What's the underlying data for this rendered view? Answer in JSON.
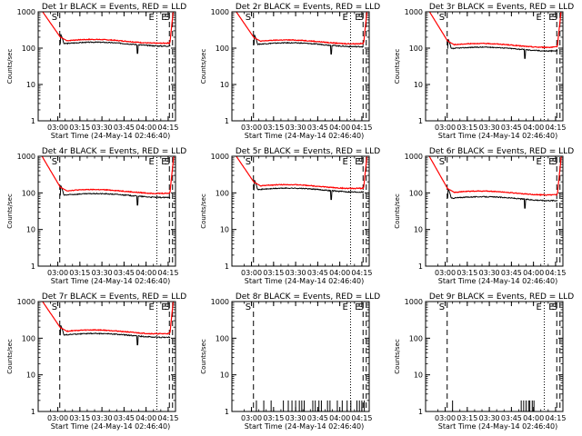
{
  "chart_data": {
    "common": {
      "type": "line",
      "ylabel": "Counts/sec",
      "xlabel": "Start Time (24-May-14 02:46:40)",
      "yscale": "log",
      "ylim": [
        1,
        1000
      ],
      "yticks": [
        1,
        10,
        100,
        1000
      ],
      "xlim_sec": [
        0,
        5600
      ],
      "xticks": [
        {
          "t": 800,
          "label": "03:00"
        },
        {
          "t": 1700,
          "label": "03:15"
        },
        {
          "t": 2600,
          "label": "03:30"
        },
        {
          "t": 3500,
          "label": "03:45"
        },
        {
          "t": 4400,
          "label": "04:00"
        },
        {
          "t": 5300,
          "label": "04:15"
        }
      ],
      "markers": [
        {
          "label": "S",
          "t": 880,
          "style": "dashed"
        },
        {
          "label": "E",
          "t": 4840,
          "style": "dotted"
        },
        {
          "label": "E",
          "t": 5350,
          "style": "dashed"
        },
        {
          "label": "S",
          "t": 5480,
          "style": "dashed"
        }
      ],
      "colors": {
        "events": "#000000",
        "lld": "#ff0000"
      }
    },
    "panels": [
      {
        "title": "Det 1r BLACK = Events, RED = LLD",
        "events_level": 130,
        "lld_level": 155,
        "mode": "normal"
      },
      {
        "title": "Det 2r BLACK = Events, RED = LLD",
        "events_level": 125,
        "lld_level": 150,
        "mode": "normal"
      },
      {
        "title": "Det 3r BLACK = Events, RED = LLD",
        "events_level": 95,
        "lld_level": 120,
        "mode": "normal"
      },
      {
        "title": "Det 4r BLACK = Events, RED = LLD",
        "events_level": 85,
        "lld_level": 110,
        "mode": "normal"
      },
      {
        "title": "Det 5r BLACK = Events, RED = LLD",
        "events_level": 120,
        "lld_level": 150,
        "mode": "normal"
      },
      {
        "title": "Det 6r BLACK = Events, RED = LLD",
        "events_level": 70,
        "lld_level": 100,
        "mode": "normal"
      },
      {
        "title": "Det 7r BLACK = Events, RED = LLD",
        "events_level": 120,
        "lld_level": 150,
        "mode": "normal"
      },
      {
        "title": "Det 8r BLACK = Events, RED = LLD",
        "events_level": 2,
        "lld_level": null,
        "mode": "sparse",
        "spike_times": [
          1000,
          1300,
          1600,
          2100,
          2300,
          2450,
          2600,
          2750,
          2850,
          2950,
          3300,
          3400,
          3550,
          3650,
          3900,
          4000,
          4300,
          4500,
          4700,
          4850,
          5100,
          5200,
          5300,
          5400
        ]
      },
      {
        "title": "Det 9r BLACK = Events, RED = LLD",
        "events_level": 2,
        "lld_level": null,
        "mode": "sparse",
        "spike_times": [
          1100,
          3900,
          4000,
          4100,
          4200,
          4250,
          4350,
          4420
        ]
      }
    ]
  }
}
